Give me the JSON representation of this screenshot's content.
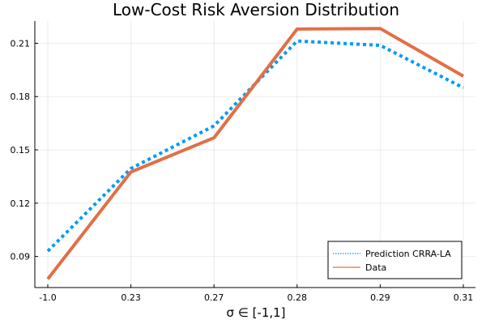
{
  "chart_data": {
    "type": "line",
    "title": "Low-Cost Risk Aversion Distribution",
    "xlabel": "σ ∈ [-1,1]",
    "ylabel": "",
    "categories": [
      "-1.0",
      "0.23",
      "0.27",
      "0.28",
      "0.29",
      "0.31"
    ],
    "y_ticks": [
      "0.09",
      "0.12",
      "0.15",
      "0.18",
      "0.21"
    ],
    "ylim": [
      0.0725,
      0.2225
    ],
    "grid": true,
    "legend_position": "bottom-right",
    "series": [
      {
        "name": "Prediction CRRA-LA",
        "color": "#009af9",
        "style": "dotted",
        "values": [
          0.093,
          0.1395,
          0.1635,
          0.2113,
          0.2088,
          0.185
        ]
      },
      {
        "name": "Data",
        "color": "#e26f46",
        "style": "solid",
        "values": [
          0.0773,
          0.1375,
          0.1568,
          0.218,
          0.2183,
          0.1915
        ]
      }
    ]
  }
}
